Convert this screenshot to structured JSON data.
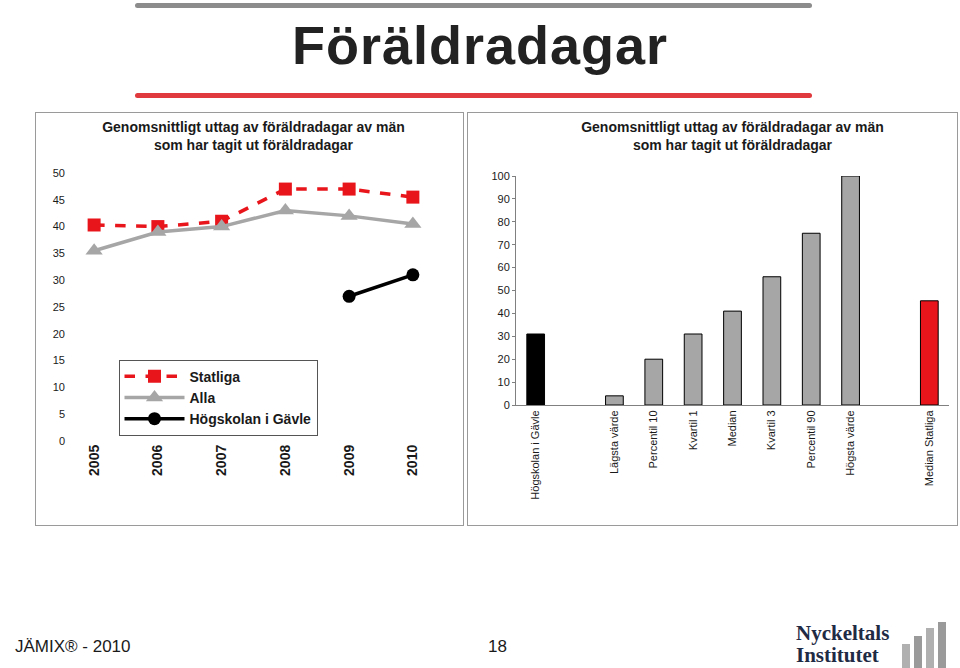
{
  "page": {
    "title": "Föräldradagar",
    "footer": "JÄMIX® - 2010",
    "page_number": "18",
    "logo": [
      "Nyckeltals",
      "Institutet"
    ]
  },
  "chart_data": [
    {
      "type": "line",
      "title": "Genomsnittligt uttag av föräldradagar av män som har tagit ut föräldradagar",
      "categories": [
        "2005",
        "2006",
        "2007",
        "2008",
        "2009",
        "2010"
      ],
      "series": [
        {
          "name": "Statliga",
          "color": "#e8151b",
          "marker": "square",
          "line_style": "dash",
          "values": [
            40.3,
            40,
            41,
            47,
            47,
            45.5
          ]
        },
        {
          "name": "Alla",
          "color": "#a6a6a6",
          "marker": "triangle",
          "line_style": "solid",
          "values": [
            35.5,
            39,
            40,
            43,
            42,
            40.5
          ]
        },
        {
          "name": "Högskolan i Gävle",
          "color": "#000000",
          "marker": "circle",
          "line_style": "solid",
          "values": [
            null,
            null,
            null,
            null,
            27,
            31
          ]
        }
      ],
      "ylim": [
        0,
        50
      ],
      "yticks": [
        0,
        5,
        10,
        15,
        20,
        25,
        30,
        35,
        40,
        45,
        50
      ],
      "grid": false,
      "legend": "bottom"
    },
    {
      "type": "bar",
      "title": "Genomsnittligt uttag av föräldradagar av män som har tagit ut föräldradagar",
      "categories": [
        "Högskolan i Gävle",
        null,
        "Lägsta värde",
        "Percentil 10",
        "Kvartil 1",
        "Median",
        "Kvartil 3",
        "Percentil 90",
        "Högsta värde",
        null,
        "Median Statliga"
      ],
      "values": [
        31,
        null,
        4,
        20,
        31,
        41,
        56,
        75,
        100,
        null,
        45.5
      ],
      "colors": [
        "#000000",
        "#a6a6a6",
        "#a6a6a6",
        "#a6a6a6",
        "#a6a6a6",
        "#a6a6a6",
        "#a6a6a6",
        "#a6a6a6",
        "#a6a6a6",
        "#a6a6a6",
        "#e8151b"
      ],
      "ylim": [
        0,
        100
      ],
      "yticks": [
        0,
        10,
        20,
        30,
        40,
        50,
        60,
        70,
        80,
        90,
        100
      ],
      "grid": false
    }
  ]
}
